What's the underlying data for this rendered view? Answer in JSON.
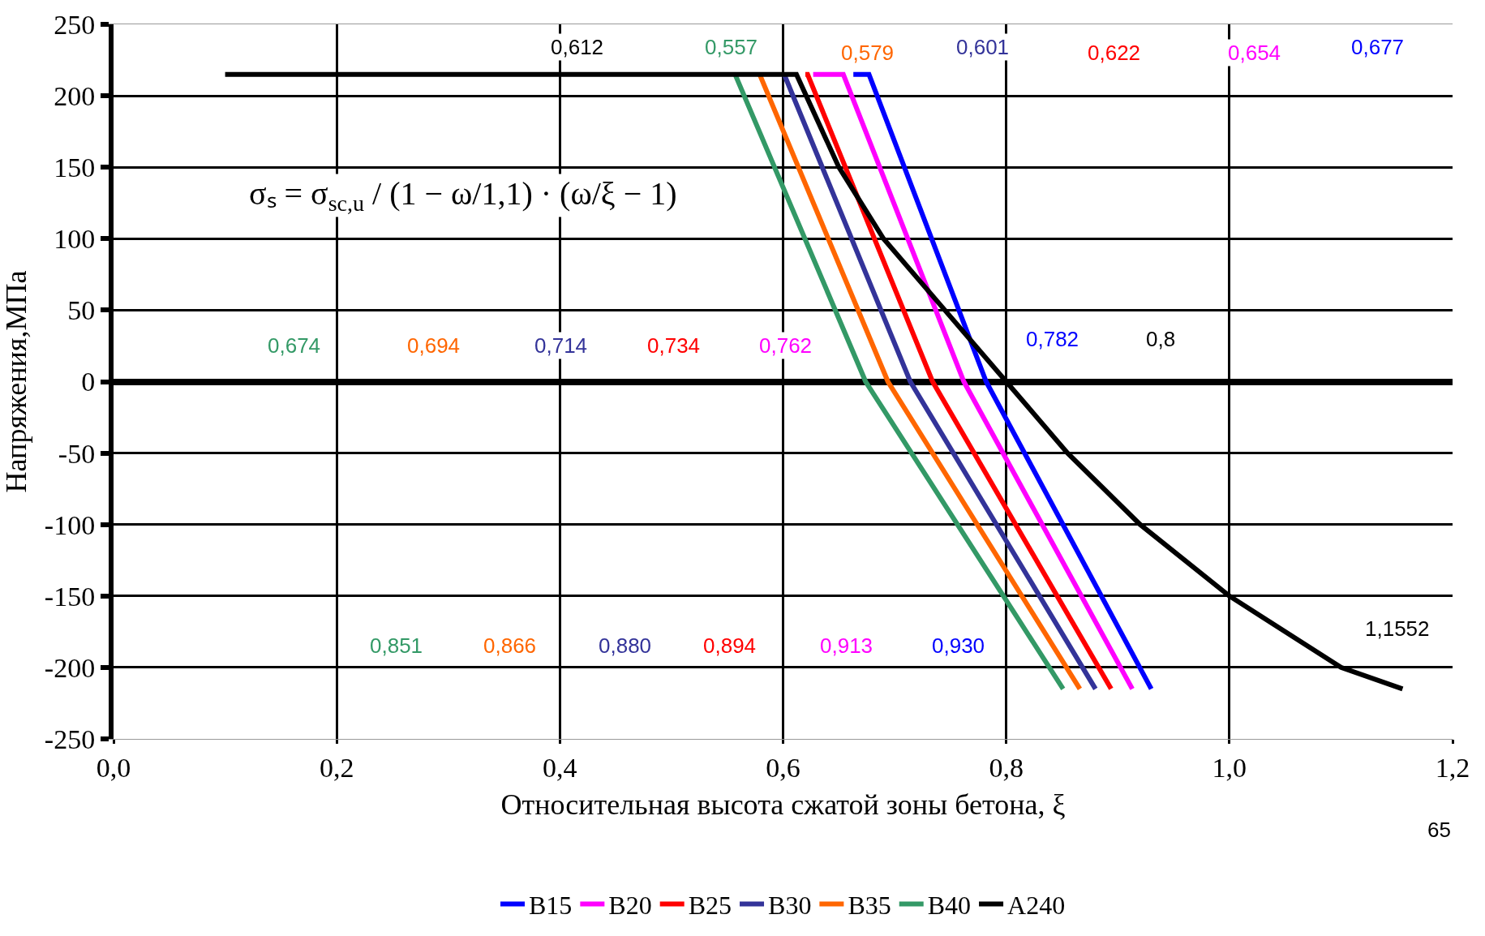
{
  "chart_data": {
    "type": "line",
    "xlabel": "Относительная высота сжатой зоны бетона, ξ",
    "ylabel": "Напряжения,МПа",
    "xlim": [
      0,
      1.2
    ],
    "xticks": [
      {
        "value": 0,
        "label": "0,0"
      },
      {
        "value": 0.2,
        "label": "0,2"
      },
      {
        "value": 0.4,
        "label": "0,4"
      },
      {
        "value": 0.6,
        "label": "0,6"
      },
      {
        "value": 0.8,
        "label": "0,8"
      },
      {
        "value": 1.0,
        "label": "1,0"
      },
      {
        "value": 1.2,
        "label": "1,2"
      }
    ],
    "ylim": [
      -250,
      250
    ],
    "yticks": [
      -250,
      -200,
      -150,
      -100,
      -50,
      0,
      50,
      100,
      150,
      200,
      250
    ],
    "grid": true,
    "legend": "bottom",
    "marker": "none",
    "line_style": "solid",
    "series": [
      {
        "name": "B15",
        "color": "#0000ff",
        "x": [
          0.663,
          0.677,
          0.782,
          0.93
        ],
        "values": [
          215,
          215,
          0,
          -215
        ]
      },
      {
        "name": "B20",
        "color": "#ff00ff",
        "x": [
          0.627,
          0.654,
          0.762,
          0.913
        ],
        "values": [
          215,
          215,
          0,
          -215
        ]
      },
      {
        "name": "B25",
        "color": "#ff0000",
        "x": [
          0.62,
          0.622,
          0.734,
          0.894
        ],
        "values": [
          215,
          215,
          0,
          -215
        ]
      },
      {
        "name": "B30",
        "color": "#333399",
        "x": [
          0.601,
          0.714,
          0.88
        ],
        "values": [
          215,
          0,
          -215
        ]
      },
      {
        "name": "B35",
        "color": "#ff6600",
        "x": [
          0.579,
          0.694,
          0.866
        ],
        "values": [
          215,
          0,
          -215
        ]
      },
      {
        "name": "B40",
        "color": "#339966",
        "x": [
          0.557,
          0.674,
          0.851
        ],
        "values": [
          215,
          0,
          -215
        ]
      },
      {
        "name": "A240",
        "color": "#000000",
        "x": [
          0.1,
          0.612,
          0.65,
          0.69,
          0.745,
          0.8,
          0.855,
          0.92,
          1.0,
          1.1,
          1.1552
        ],
        "values": [
          215,
          215,
          150,
          100,
          50,
          0,
          -50,
          -100,
          -150,
          -200,
          -215
        ]
      }
    ],
    "annotations": [
      "σₛ = σ$_{sc,u}$ / (1 − ω/1,1) · (ω/ξ − 1)",
      "65",
      "0,612",
      "0,557",
      "0,579",
      "0,601",
      "0,622",
      "0,654",
      "0,677",
      "0,674",
      "0,694",
      "0,714",
      "0,734",
      "0,762",
      "0,782",
      "0,8",
      "0,851",
      "0,866",
      "0,880",
      "0,894",
      "0,913",
      "0,930",
      "1,1552"
    ]
  }
}
